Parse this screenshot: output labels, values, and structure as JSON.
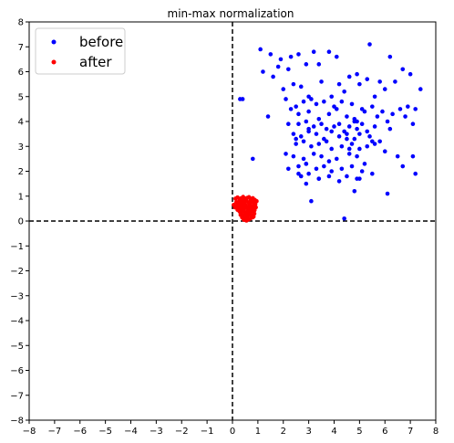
{
  "chart_data": {
    "type": "scatter",
    "title": "min-max normalization",
    "xlabel": "",
    "ylabel": "",
    "xlim": [
      -8,
      8
    ],
    "ylim": [
      -8,
      8
    ],
    "xticks": [
      "−8",
      "−7",
      "−6",
      "−5",
      "−4",
      "−3",
      "−2",
      "−1",
      "0",
      "1",
      "2",
      "3",
      "4",
      "5",
      "6",
      "7",
      "8"
    ],
    "yticks": [
      "−8",
      "−7",
      "−6",
      "−5",
      "−4",
      "−3",
      "−2",
      "−1",
      "0",
      "1",
      "2",
      "3",
      "4",
      "5",
      "6",
      "7",
      "8"
    ],
    "grid": false,
    "legend_position": "top-left",
    "reference_lines": [
      {
        "orientation": "vertical",
        "value": 0,
        "style": "dashed",
        "color": "#000000"
      },
      {
        "orientation": "horizontal",
        "value": 0,
        "style": "dashed",
        "color": "#000000"
      }
    ],
    "series": [
      {
        "name": "before",
        "color": "#0000ff",
        "x": [
          1.1,
          1.5,
          1.9,
          2.3,
          2.6,
          3.2,
          3.8,
          4.1,
          4.9,
          5.4,
          6.2,
          6.7,
          7.0,
          7.4,
          1.2,
          1.6,
          1.8,
          2.2,
          2.4,
          2.9,
          3.4,
          4.2,
          4.6,
          5.3,
          5.8,
          6.4,
          6.9,
          7.2,
          2.0,
          2.7,
          3.0,
          3.5,
          3.9,
          4.4,
          5.0,
          5.6,
          6.0,
          6.6,
          2.1,
          2.5,
          2.8,
          3.1,
          3.3,
          3.6,
          4.0,
          4.3,
          4.7,
          5.1,
          5.5,
          5.9,
          6.3,
          6.8,
          7.1,
          1.4,
          2.3,
          2.6,
          3.0,
          3.4,
          3.8,
          4.1,
          4.5,
          4.8,
          5.2,
          5.7,
          6.1,
          2.2,
          2.6,
          2.9,
          3.2,
          3.5,
          3.7,
          4.0,
          4.2,
          4.4,
          4.6,
          4.9,
          5.1,
          5.3,
          5.6,
          2.4,
          2.7,
          3.0,
          3.3,
          3.6,
          3.9,
          4.2,
          4.5,
          4.8,
          5.0,
          5.4,
          5.8,
          2.5,
          2.8,
          3.1,
          3.4,
          3.7,
          3.9,
          4.3,
          4.7,
          5.0,
          5.3,
          5.6,
          6.0,
          6.5,
          2.1,
          2.4,
          2.8,
          3.2,
          3.5,
          3.8,
          4.1,
          4.6,
          4.9,
          5.2,
          2.6,
          2.9,
          3.3,
          3.6,
          3.9,
          4.3,
          4.7,
          5.1,
          5.5,
          2.7,
          3.0,
          3.4,
          3.8,
          4.2,
          4.5,
          4.9,
          0.3,
          0.4,
          0.8,
          2.2,
          2.9,
          3.1,
          3.4,
          4.4,
          4.8,
          5.0,
          6.1,
          6.7,
          7.2,
          2.5,
          2.6,
          2.9,
          3.0,
          4.5,
          4.6,
          4.8,
          4.9,
          5.5,
          6.2,
          7.1
        ],
        "y": [
          6.9,
          6.7,
          6.5,
          6.6,
          6.7,
          6.8,
          6.8,
          6.6,
          5.9,
          7.1,
          6.6,
          6.1,
          5.9,
          5.3,
          6.0,
          5.8,
          6.2,
          6.1,
          5.5,
          6.3,
          6.3,
          5.5,
          5.8,
          5.7,
          5.6,
          5.6,
          4.6,
          4.5,
          5.3,
          5.4,
          5.0,
          5.6,
          5.0,
          5.2,
          5.5,
          5.0,
          5.3,
          4.5,
          4.9,
          4.6,
          4.8,
          4.9,
          4.7,
          4.8,
          4.6,
          4.8,
          4.7,
          4.5,
          4.6,
          4.4,
          4.3,
          4.2,
          3.9,
          4.2,
          4.5,
          4.3,
          4.4,
          4.1,
          4.3,
          4.5,
          4.2,
          4.1,
          4.4,
          4.2,
          4.0,
          3.9,
          3.9,
          4.0,
          3.8,
          3.9,
          3.7,
          3.8,
          3.9,
          3.6,
          3.8,
          3.7,
          3.9,
          3.6,
          3.8,
          3.5,
          3.4,
          3.6,
          3.5,
          3.3,
          3.6,
          3.4,
          3.5,
          3.3,
          3.5,
          3.4,
          3.2,
          3.1,
          3.2,
          3.0,
          3.1,
          3.2,
          2.9,
          3.0,
          3.1,
          2.9,
          3.0,
          3.1,
          2.8,
          2.6,
          2.7,
          2.6,
          2.5,
          2.7,
          2.6,
          2.4,
          2.5,
          2.7,
          2.6,
          2.3,
          2.2,
          2.3,
          2.1,
          2.2,
          2.0,
          2.1,
          2.2,
          2.0,
          1.9,
          1.8,
          1.9,
          1.7,
          1.8,
          1.6,
          1.8,
          1.7,
          4.9,
          4.9,
          2.5,
          2.1,
          1.5,
          0.8,
          1.7,
          0.1,
          1.2,
          1.7,
          1.1,
          2.2,
          1.9,
          3.3,
          1.9,
          2.3,
          3.7,
          3.3,
          2.9,
          4.0,
          4.0,
          3.2,
          3.7,
          2.6
        ]
      },
      {
        "name": "after",
        "color": "#ff0000",
        "x": [
          0.12,
          0.2,
          0.28,
          0.35,
          0.42,
          0.5,
          0.58,
          0.65,
          0.72,
          0.8,
          0.88,
          0.95,
          0.15,
          0.25,
          0.33,
          0.4,
          0.48,
          0.55,
          0.62,
          0.7,
          0.78,
          0.85,
          0.9,
          0.18,
          0.26,
          0.34,
          0.44,
          0.52,
          0.6,
          0.68,
          0.75,
          0.82,
          0.92,
          0.22,
          0.3,
          0.38,
          0.46,
          0.54,
          0.64,
          0.72,
          0.8,
          0.87,
          0.28,
          0.36,
          0.45,
          0.53,
          0.61,
          0.7,
          0.78,
          0.86,
          0.32,
          0.42,
          0.5,
          0.58,
          0.66,
          0.74,
          0.83,
          0.38,
          0.47,
          0.56,
          0.64,
          0.72,
          0.8,
          0.45,
          0.55,
          0.63,
          0.7,
          0.6,
          0.5,
          0.4,
          0.3,
          0.2,
          0.1,
          0.05
        ],
        "y": [
          0.9,
          0.95,
          0.88,
          0.92,
          0.97,
          0.9,
          0.93,
          0.96,
          0.89,
          0.92,
          0.85,
          0.8,
          0.75,
          0.78,
          0.72,
          0.8,
          0.76,
          0.82,
          0.74,
          0.79,
          0.77,
          0.71,
          0.68,
          0.6,
          0.64,
          0.58,
          0.66,
          0.62,
          0.57,
          0.65,
          0.61,
          0.59,
          0.55,
          0.5,
          0.46,
          0.52,
          0.48,
          0.54,
          0.45,
          0.51,
          0.47,
          0.44,
          0.38,
          0.35,
          0.4,
          0.33,
          0.37,
          0.34,
          0.39,
          0.3,
          0.25,
          0.22,
          0.28,
          0.2,
          0.26,
          0.23,
          0.18,
          0.14,
          0.1,
          0.16,
          0.08,
          0.12,
          0.15,
          0.05,
          0.02,
          0.06,
          0.1,
          0.4,
          0.6,
          0.7,
          0.5,
          0.45,
          0.55,
          0.65
        ]
      }
    ]
  }
}
